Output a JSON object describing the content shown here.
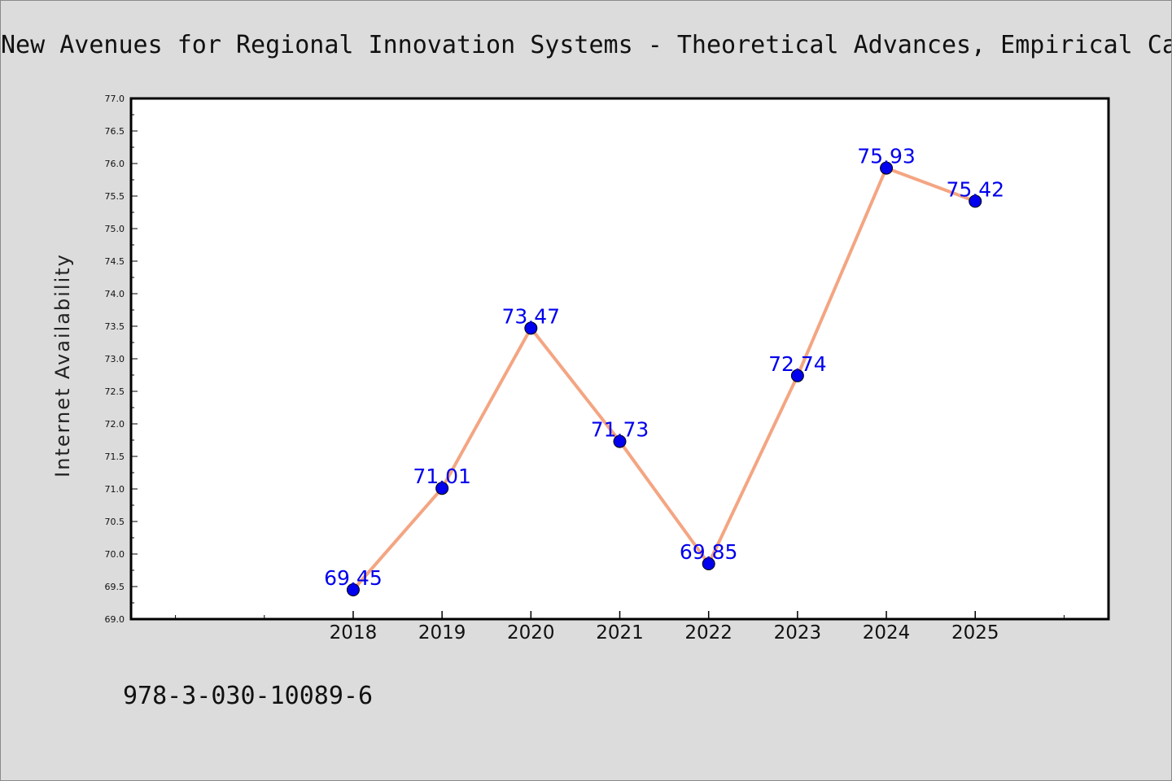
{
  "chart_data": {
    "type": "line",
    "title": "New Avenues for Regional Innovation Systems - Theoretical Advances, Empirical Cases",
    "ylabel": "Internet Availability",
    "xlabel": "",
    "x": [
      2018,
      2019,
      2020,
      2021,
      2022,
      2023,
      2024,
      2025
    ],
    "x_tick_labels": [
      "2018",
      "2019",
      "2020",
      "2021",
      "2022",
      "2023",
      "2024",
      "2025"
    ],
    "xlim": [
      2015.5,
      2026.5
    ],
    "ylim": [
      69.0,
      77.0
    ],
    "y_ticks": [
      "69.0",
      "69.5",
      "70.0",
      "70.5",
      "71.0",
      "71.5",
      "72.0",
      "72.5",
      "73.0",
      "73.5",
      "74.0",
      "74.5",
      "75.0",
      "75.5",
      "76.0",
      "76.5",
      "77.0"
    ],
    "series": [
      {
        "values": [
          69.45,
          71.01,
          73.47,
          71.73,
          69.85,
          72.74,
          75.93,
          75.42
        ],
        "data_labels": [
          "69.45",
          "71.01",
          "73.47",
          "71.73",
          "69.85",
          "72.74",
          "75.93",
          "75.42"
        ]
      }
    ],
    "grid": false,
    "legend": "none",
    "line_color": "#f4a582",
    "marker_color": "#0000ee",
    "label_color": "#0000ee"
  },
  "footer": {
    "text": "978-3-030-10089-6"
  }
}
